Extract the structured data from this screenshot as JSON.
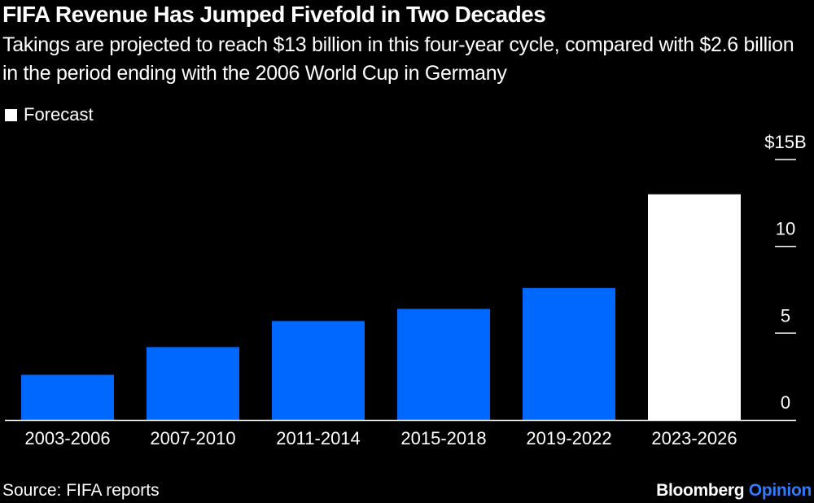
{
  "header": {
    "title": "FIFA Revenue Has Jumped Fivefold in Two Decades",
    "subtitle": "Takings are projected to reach $13 billion in this four-year cycle, compared with $2.6 billion in the period ending with the 2006 World Cup in Germany"
  },
  "legend": {
    "label": "Forecast",
    "color": "#ffffff"
  },
  "footer": {
    "source": "Source: FIFA reports",
    "brand_primary": "Bloomberg",
    "brand_secondary": "Opinion"
  },
  "colors": {
    "actual": "#0068ff",
    "forecast": "#ffffff",
    "background": "#000000",
    "text": "#ffffff",
    "accent": "#2e7dff"
  },
  "chart_data": {
    "type": "bar",
    "title": "FIFA Revenue Has Jumped Fivefold in Two Decades",
    "xlabel": "",
    "ylabel": "",
    "categories": [
      "2003-2006",
      "2007-2010",
      "2011-2014",
      "2015-2018",
      "2019-2022",
      "2023-2026"
    ],
    "values": [
      2.6,
      4.2,
      5.7,
      6.4,
      7.6,
      13.0
    ],
    "forecast": [
      false,
      false,
      false,
      false,
      false,
      true
    ],
    "ylim": [
      0,
      15
    ],
    "yticks": [
      0,
      5,
      10,
      15
    ],
    "ytick_labels": [
      "0",
      "5",
      "10",
      "$15B"
    ],
    "grid": false,
    "legend": [
      "Forecast"
    ],
    "legend_position": "top-left"
  }
}
